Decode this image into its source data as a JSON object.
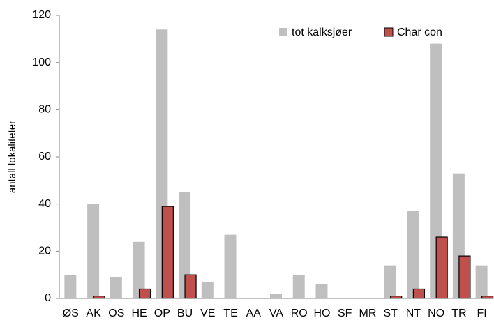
{
  "chart_data": {
    "type": "bar",
    "y_label": "antall lokaliteter",
    "categories": [
      "ØS",
      "AK",
      "OS",
      "HE",
      "OP",
      "BU",
      "VE",
      "TE",
      "AA",
      "VA",
      "RO",
      "HO",
      "SF",
      "MR",
      "ST",
      "NT",
      "NO",
      "TR",
      "FI"
    ],
    "series": [
      {
        "name": "tot kalksjøer",
        "color": "#bfbfbf",
        "values": [
          10,
          40,
          9,
          24,
          114,
          45,
          7,
          27,
          0,
          2,
          10,
          6,
          0,
          0,
          14,
          37,
          108,
          53,
          14
        ]
      },
      {
        "name": "Char con",
        "color": "#c0504d",
        "values": [
          0,
          1,
          0,
          4,
          39,
          10,
          0,
          0,
          0,
          0,
          0,
          0,
          0,
          0,
          1,
          4,
          26,
          18,
          1
        ]
      }
    ],
    "ylim": [
      0,
      120
    ],
    "yticks": [
      0,
      20,
      40,
      60,
      80,
      100,
      120
    ],
    "grid": false,
    "legend": "top-right"
  }
}
